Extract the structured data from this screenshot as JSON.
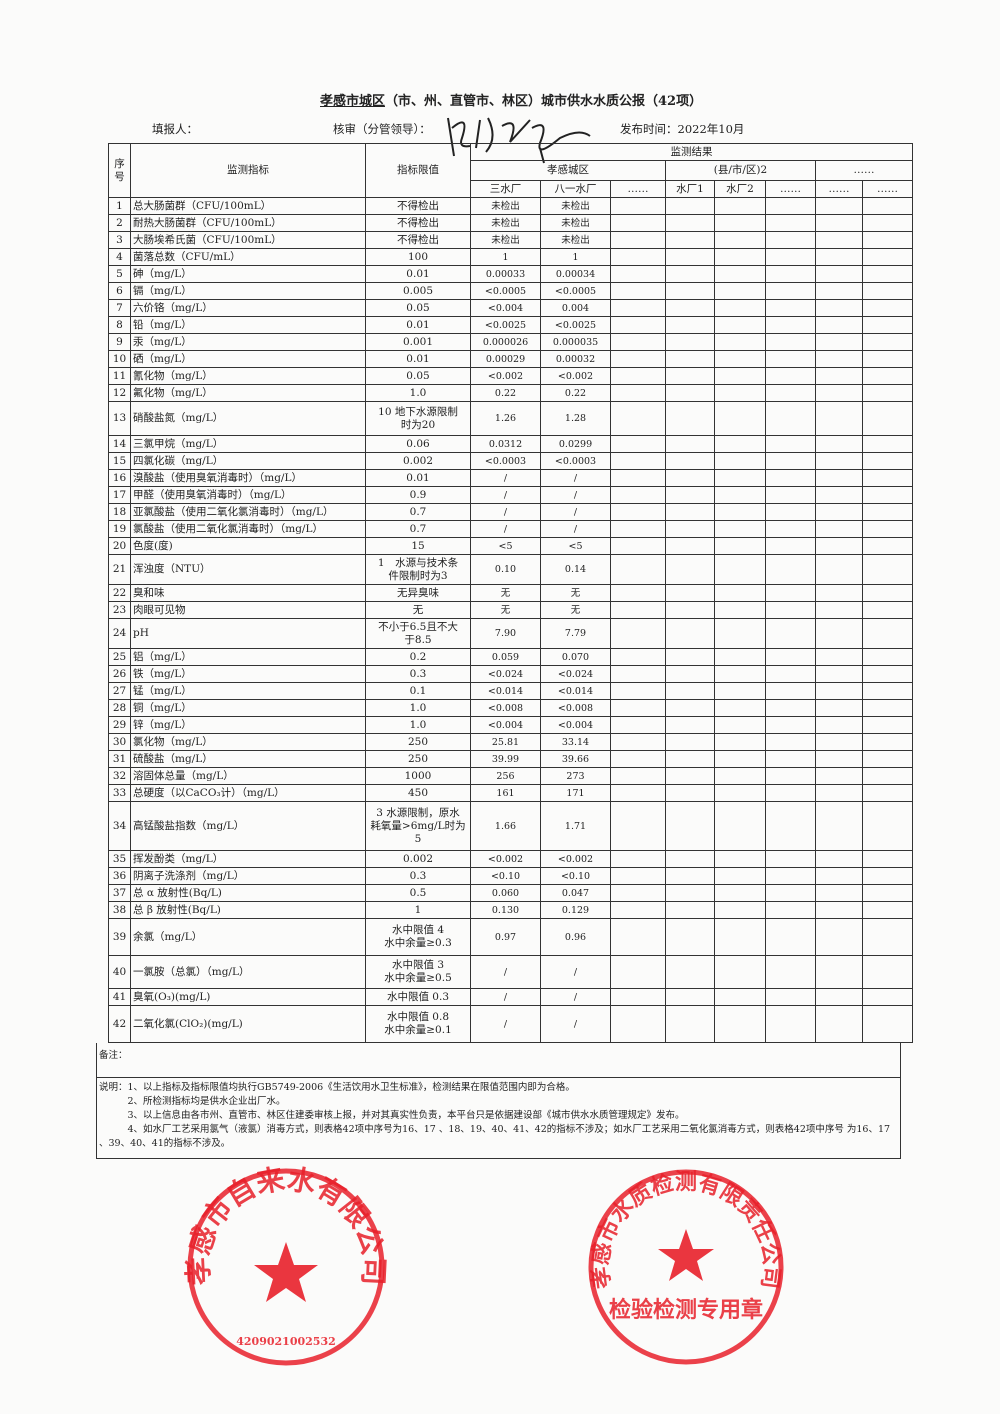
{
  "header": {
    "region": "孝感市城区",
    "title_rest": "（市、州、直管市、林区）城市供水水质公报（42项）",
    "filler_label": "填报人：",
    "reviewer_label": "核审（分管领导）：",
    "publish_label": "发布时间：2022年10月"
  },
  "table": {
    "col_seq": "序号",
    "col_indicator": "监测指标",
    "col_limit": "指标限值",
    "col_results": "监测结果",
    "group1": "孝感城区",
    "group2": "(县/市/区)2",
    "group3": "……",
    "plants": [
      "三水厂",
      "八一水厂",
      "……",
      "水厂1",
      "水厂2",
      "……",
      "……",
      "……"
    ],
    "rows": [
      [
        "1",
        "总大肠菌群（CFU/100mL）",
        "不得检出",
        "未检出",
        "未检出"
      ],
      [
        "2",
        "耐热大肠菌群（CFU/100mL）",
        "不得检出",
        "未检出",
        "未检出"
      ],
      [
        "3",
        "大肠埃希氏菌（CFU/100mL）",
        "不得检出",
        "未检出",
        "未检出"
      ],
      [
        "4",
        "菌落总数（CFU/mL）",
        "100",
        "1",
        "1"
      ],
      [
        "5",
        "砷（mg/L）",
        "0.01",
        "0.00033",
        "0.00034"
      ],
      [
        "6",
        "镉（mg/L）",
        "0.005",
        "<0.0005",
        "<0.0005"
      ],
      [
        "7",
        "六价铬（mg/L）",
        "0.05",
        "<0.004",
        "0.004"
      ],
      [
        "8",
        "铅（mg/L）",
        "0.01",
        "<0.0025",
        "<0.0025"
      ],
      [
        "9",
        "汞（mg/L）",
        "0.001",
        "0.000026",
        "0.000035"
      ],
      [
        "10",
        "硒（mg/L）",
        "0.01",
        "0.00029",
        "0.00032"
      ],
      [
        "11",
        "氰化物（mg/L）",
        "0.05",
        "<0.002",
        "<0.002"
      ],
      [
        "12",
        "氟化物（mg/L）",
        "1.0",
        "0.22",
        "0.22"
      ],
      [
        "13",
        "硝酸盐氮（mg/L）",
        "10 地下水源限制\n时为20",
        "1.26",
        "1.28"
      ],
      [
        "14",
        "三氯甲烷（mg/L）",
        "0.06",
        "0.0312",
        "0.0299"
      ],
      [
        "15",
        "四氯化碳（mg/L）",
        "0.002",
        "<0.0003",
        "<0.0003"
      ],
      [
        "16",
        "溴酸盐（使用臭氧消毒时）（mg/L）",
        "0.01",
        "/",
        "/"
      ],
      [
        "17",
        "甲醛（使用臭氧消毒时）（mg/L）",
        "0.9",
        "/",
        "/"
      ],
      [
        "18",
        "亚氯酸盐（使用二氧化氯消毒时）（mg/L）",
        "0.7",
        "/",
        "/"
      ],
      [
        "19",
        "氯酸盐（使用二氧化氯消毒时）（mg/L）",
        "0.7",
        "/",
        "/"
      ],
      [
        "20",
        "色度(度)",
        "15",
        "<5",
        "<5"
      ],
      [
        "21",
        "浑浊度（NTU）",
        "1　水源与技术条\n件限制时为3",
        "0.10",
        "0.14"
      ],
      [
        "22",
        "臭和味",
        "无异臭味",
        "无",
        "无"
      ],
      [
        "23",
        "肉眼可见物",
        "无",
        "无",
        "无"
      ],
      [
        "24",
        "pH",
        "不小于6.5且不大\n于8.5",
        "7.90",
        "7.79"
      ],
      [
        "25",
        "铝（mg/L）",
        "0.2",
        "0.059",
        "0.070"
      ],
      [
        "26",
        "铁（mg/L）",
        "0.3",
        "<0.024",
        "<0.024"
      ],
      [
        "27",
        "锰（mg/L）",
        "0.1",
        "<0.014",
        "<0.014"
      ],
      [
        "28",
        "铜（mg/L）",
        "1.0",
        "<0.008",
        "<0.008"
      ],
      [
        "29",
        "锌（mg/L）",
        "1.0",
        "<0.004",
        "<0.004"
      ],
      [
        "30",
        "氯化物（mg/L）",
        "250",
        "25.81",
        "33.14"
      ],
      [
        "31",
        "硫酸盐（mg/L）",
        "250",
        "39.99",
        "39.66"
      ],
      [
        "32",
        "溶固体总量（mg/L）",
        "1000",
        "256",
        "273"
      ],
      [
        "33",
        "总硬度（以CaCO₃计）（mg/L）",
        "450",
        "161",
        "171"
      ],
      [
        "34",
        "高锰酸盐指数（mg/L）",
        "3 水源限制，原水\n耗氧量>6mg/L时为\n5",
        "1.66",
        "1.71"
      ],
      [
        "35",
        "挥发酚类（mg/L）",
        "0.002",
        "<0.002",
        "<0.002"
      ],
      [
        "36",
        "阴离子洗涤剂（mg/L）",
        "0.3",
        "<0.10",
        "<0.10"
      ],
      [
        "37",
        "总 α 放射性(Bq/L)",
        "0.5",
        "0.060",
        "0.047"
      ],
      [
        "38",
        "总 β 放射性(Bq/L)",
        "1",
        "0.130",
        "0.129"
      ],
      [
        "39",
        "余氯（mg/L）",
        "水中限值 4\n水中余量≥0.3",
        "0.97",
        "0.96"
      ],
      [
        "40",
        "一氯胺（总氯）（mg/L）",
        "水中限值 3\n水中余量≥0.5",
        "/",
        "/"
      ],
      [
        "41",
        "臭氧(O₃)(mg/L)",
        "水中限值 0.3",
        "/",
        "/"
      ],
      [
        "42",
        "二氧化氯(ClO₂)(mg/L)",
        "水中限值 0.8\n水中余量≥0.1",
        "/",
        "/"
      ]
    ]
  },
  "remark_label": "备注：",
  "notes": "说明：1、以上指标及指标限值均执行GB5749-2006《生活饮用水卫生标准》，检测结果在限值范围内即为合格。\n　　　2、所检测指标均是供水企业出厂水。\n　　　3、以上信息由各市州、直管市、林区住建委审核上报，并对其真实性负责，本平台只是依据建设部《城市供水水质管理规定》发布。\n　　　4、如水厂工艺采用氯气（液氯）消毒方式，则表格42项中序号为16、17 、18、19、40、41、42的指标不涉及；如水厂工艺采用二氧化氯消毒方式，则表格42项中序号 为16、17\n、39、40、41的指标不涉及。",
  "stamps": {
    "company": "孝感市自来水有限公司",
    "company_code": "4209021002532",
    "lab": "孝感市水质检测有限责任公司",
    "lab_sub": "检验检测专用章",
    "color": "#e8202a"
  }
}
